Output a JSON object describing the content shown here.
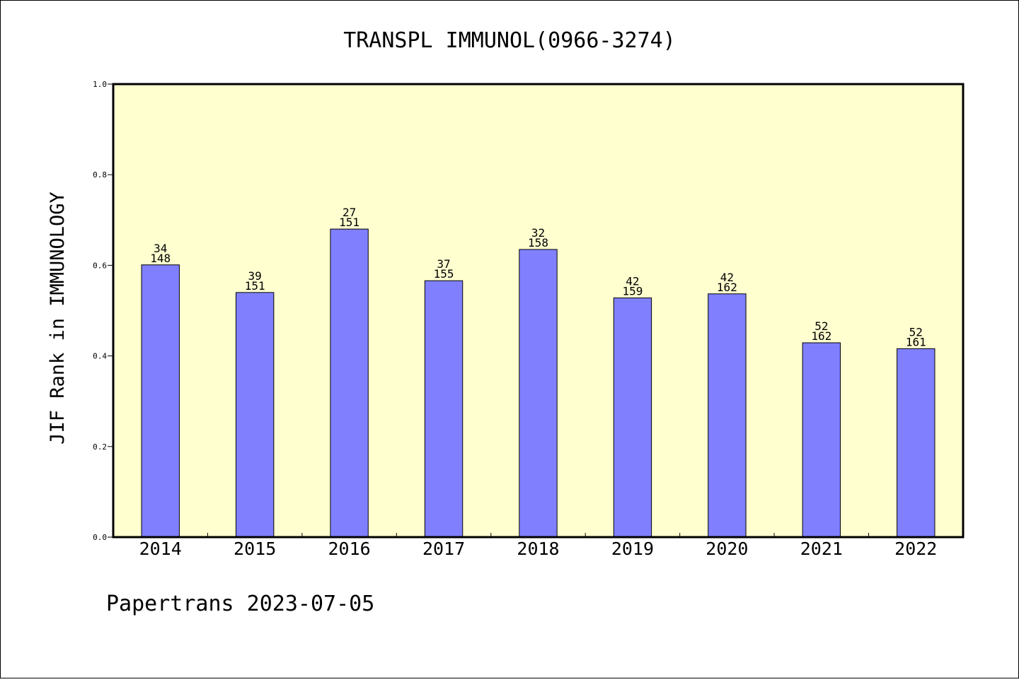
{
  "chart_data": {
    "type": "bar",
    "title": "TRANSPL IMMUNOL(0966-3274)",
    "xlabel": "",
    "ylabel": "JIF Rank in IMMUNOLOGY",
    "ylim": [
      0,
      1
    ],
    "yticks": [
      "0.0",
      "0.2",
      "0.4",
      "0.6",
      "0.8",
      "1.0"
    ],
    "grid": false,
    "categories": [
      "2014",
      "2015",
      "2016",
      "2017",
      "2018",
      "2019",
      "2020",
      "2021",
      "2022"
    ],
    "values": [
      0.601,
      0.54,
      0.68,
      0.566,
      0.635,
      0.528,
      0.537,
      0.429,
      0.416
    ],
    "data_labels": [
      {
        "rank": "34",
        "total": "148"
      },
      {
        "rank": "39",
        "total": "151"
      },
      {
        "rank": "27",
        "total": "151"
      },
      {
        "rank": "37",
        "total": "155"
      },
      {
        "rank": "32",
        "total": "158"
      },
      {
        "rank": "42",
        "total": "159"
      },
      {
        "rank": "42",
        "total": "162"
      },
      {
        "rank": "52",
        "total": "162"
      },
      {
        "rank": "52",
        "total": "161"
      }
    ],
    "colors": {
      "plot_background": "#ffffd0",
      "bar_fill": "#8080ff",
      "bar_stroke": "#000000"
    }
  },
  "footer": "Papertrans 2023-07-05"
}
